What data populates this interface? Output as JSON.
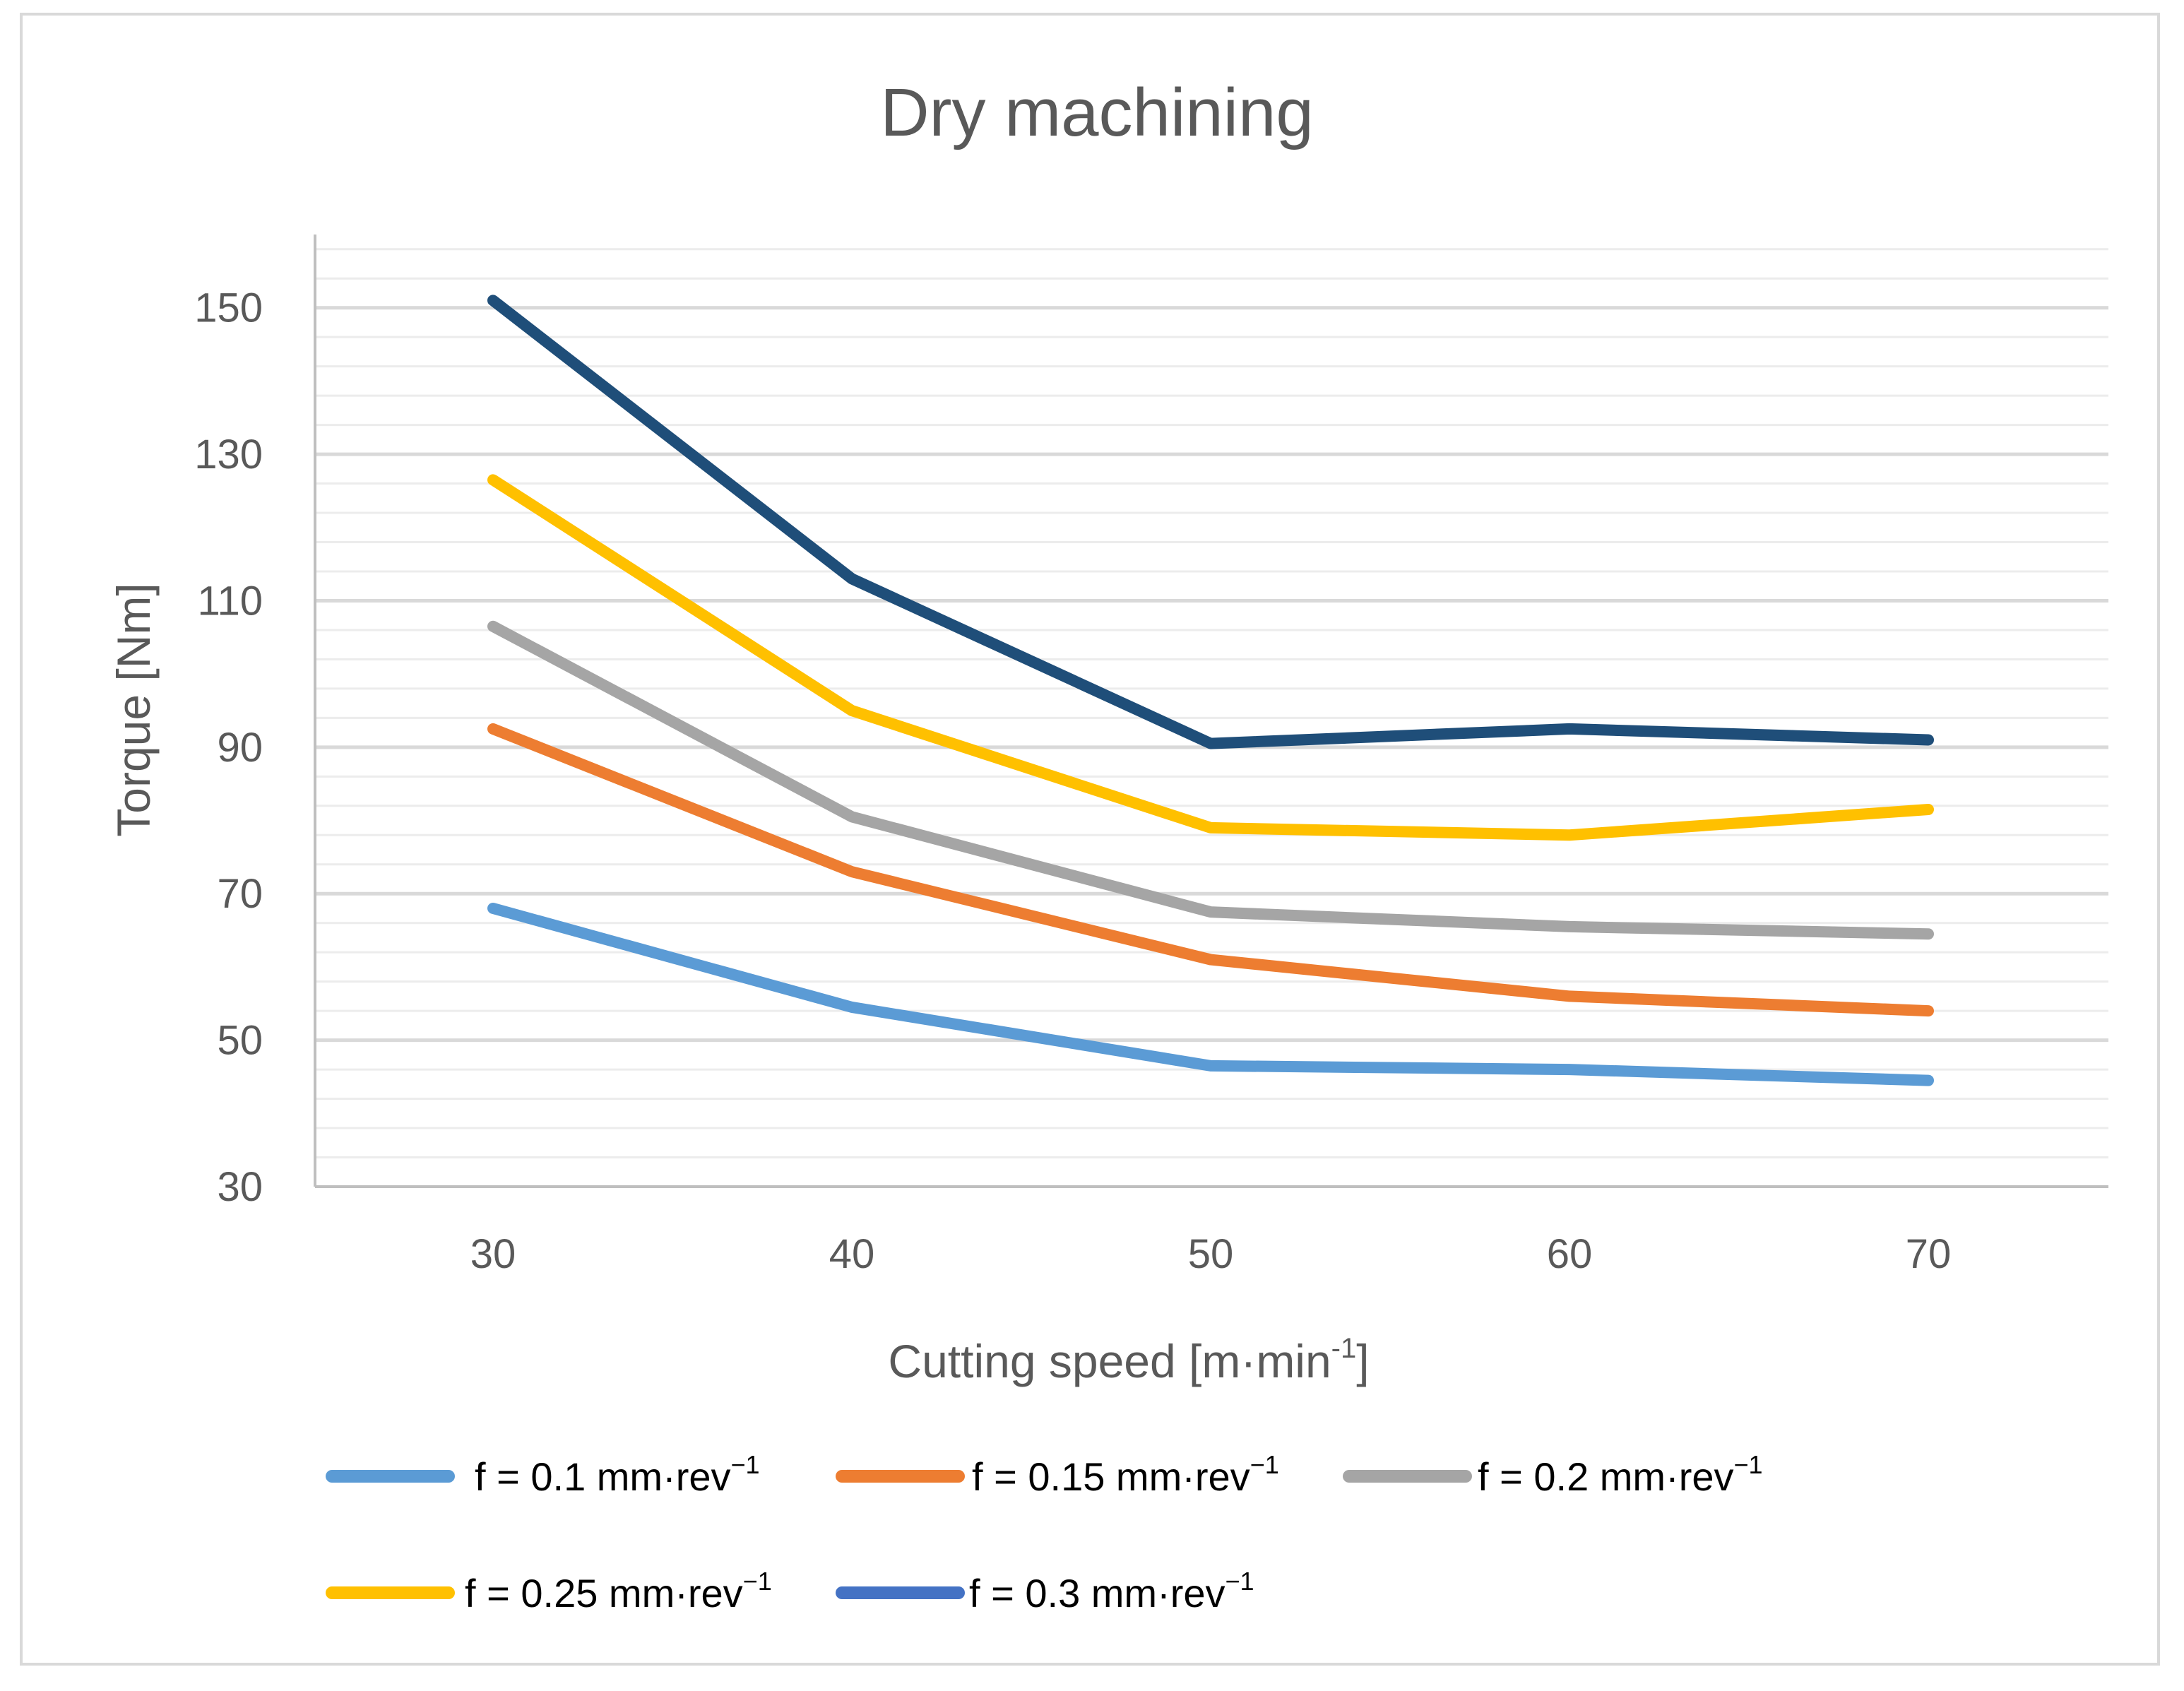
{
  "chart_data": {
    "type": "line",
    "title": "Dry machining",
    "xlabel": "Cutting speed [m·min",
    "xlabel_sup": "-1",
    "xlabel_close": "]",
    "ylabel": "Torque [Nm]",
    "x": [
      30,
      40,
      50,
      60,
      70
    ],
    "x_tick_labels": [
      "30",
      "40",
      "50",
      "60",
      "70"
    ],
    "ylim": [
      30,
      160
    ],
    "y_ticks": [
      30,
      50,
      70,
      90,
      110,
      130,
      150
    ],
    "y_tick_labels": [
      "30",
      "50",
      "70",
      "90",
      "110",
      "130",
      "150"
    ],
    "grid": true,
    "legend_position": "bottom",
    "series": [
      {
        "name": "f = 0.1 mm·rev",
        "sup": "−1",
        "color": "#5b9bd5",
        "values": [
          68,
          54.5,
          46.5,
          46,
          44.5
        ]
      },
      {
        "name": "f = 0.15 mm·rev",
        "sup": "−1",
        "color": "#ed7d31",
        "values": [
          92.5,
          73,
          61,
          56,
          54
        ]
      },
      {
        "name": "f = 0.2 mm·rev",
        "sup": "−1",
        "color": "#a5a5a5",
        "values": [
          106.5,
          80.5,
          67.5,
          65.5,
          64.5
        ]
      },
      {
        "name": "f = 0.25 mm·rev",
        "sup": "−1",
        "color": "#ffc000",
        "values": [
          126.5,
          95,
          79,
          78,
          81.5
        ]
      },
      {
        "name": "f = 0.3 mm·rev",
        "sup": "−1",
        "color": "#1f4e79",
        "legend_color": "#4472c4",
        "values": [
          151,
          113,
          90.5,
          92.5,
          91
        ]
      }
    ]
  }
}
